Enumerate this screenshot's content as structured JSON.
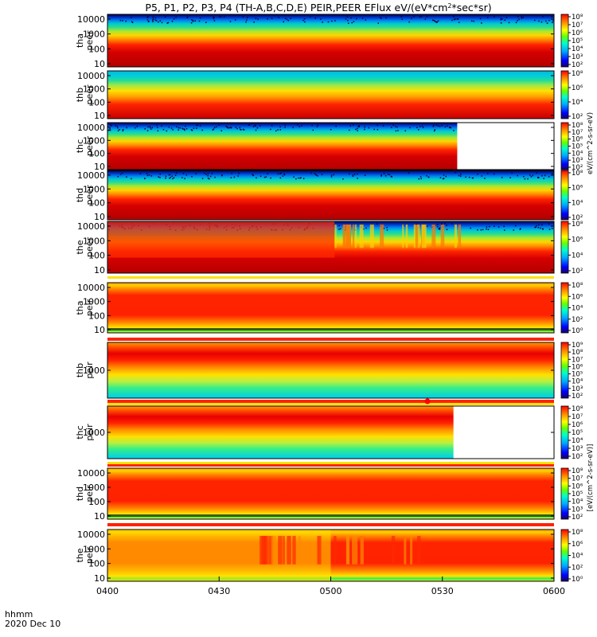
{
  "chart_data": {
    "type": "heatmap",
    "title": "P5, P1, P2, P3, P4 (TH-A,B,C,D,E) PEIR,PEER EFlux eV/(eV*cm",
    "title_sup": "2",
    "title_tail": "*sec*sr)",
    "xaxis": {
      "label_line1": "hhmm",
      "label_line2": "2020 Dec 10",
      "range": [
        "0400",
        "0600"
      ],
      "ticks": [
        "0400",
        "0430",
        "0500",
        "0530",
        "0600"
      ]
    },
    "colorbar_unit_peer": "eV/(cm^2-s-sr-eV)",
    "colorbar_unit_peir": "[eV/(cm^2-s-sr-eV)]",
    "panels": [
      {
        "probe": "tha",
        "species": "peer",
        "ylabel1": "tha",
        "ylabel2": "peer",
        "yscale": "log",
        "yticks": [
          "10",
          "100",
          "1000",
          "10000"
        ],
        "colorbar_ticks": [
          "10²",
          "10³",
          "10⁴",
          "10⁵",
          "10⁶",
          "10⁷",
          "10⁸"
        ],
        "data_end": "0600",
        "pattern": "electron_steady"
      },
      {
        "probe": "thb",
        "species": "peer",
        "ylabel1": "thb",
        "ylabel2": "peer",
        "yscale": "log",
        "yticks": [
          "10",
          "100",
          "1000",
          "10000"
        ],
        "colorbar_ticks": [
          "10²",
          "10⁴",
          "10⁶",
          "10⁸"
        ],
        "data_end": "0600",
        "pattern": "electron_clean"
      },
      {
        "probe": "thc",
        "species": "peer",
        "ylabel1": "thc",
        "ylabel2": "peer",
        "yscale": "log",
        "yticks": [
          "10",
          "100",
          "1000",
          "10000"
        ],
        "colorbar_ticks": [
          "10²",
          "10³",
          "10⁴",
          "10⁵",
          "10⁶",
          "10⁷",
          "10⁸"
        ],
        "data_end": "0534",
        "pattern": "electron_steady"
      },
      {
        "probe": "thd",
        "species": "peer",
        "ylabel1": "thd",
        "ylabel2": "peer",
        "yscale": "log",
        "yticks": [
          "10",
          "100",
          "1000",
          "10000"
        ],
        "colorbar_ticks": [
          "10²",
          "10⁴",
          "10⁶",
          "10⁸"
        ],
        "data_end": "0600",
        "pattern": "electron_steady"
      },
      {
        "probe": "the",
        "species": "peer",
        "ylabel1": "the",
        "ylabel2": "peer",
        "yscale": "log",
        "yticks": [
          "10",
          "100",
          "1000",
          "10000"
        ],
        "colorbar_ticks": [
          "10²",
          "10⁴",
          "10⁶",
          "10⁸"
        ],
        "data_end": "0600",
        "pattern": "electron_disturbed"
      },
      {
        "probe": "tha",
        "species": "peir",
        "ylabel1": "tha",
        "ylabel2": "peir",
        "yscale": "log",
        "yticks": [
          "10",
          "100",
          "1000",
          "10000"
        ],
        "colorbar_ticks": [
          "10⁰",
          "10²",
          "10⁴",
          "10⁶",
          "10⁸"
        ],
        "data_end": "0600",
        "pattern": "ion_full"
      },
      {
        "probe": "thb",
        "species": "peir",
        "ylabel1": "thb",
        "ylabel2": "peir",
        "yscale": "log",
        "yticks": [
          "1000"
        ],
        "colorbar_ticks": [
          "10²",
          "10³",
          "10⁴",
          "10⁵",
          "10⁶",
          "10⁷",
          "10⁸",
          "10⁹"
        ],
        "data_end": "0600",
        "pattern": "ion_narrow"
      },
      {
        "probe": "thc",
        "species": "peir",
        "ylabel1": "thc",
        "ylabel2": "peir",
        "yscale": "log",
        "yticks": [
          "1000"
        ],
        "colorbar_ticks": [
          "10²",
          "10³",
          "10⁴",
          "10⁵",
          "10⁶",
          "10⁷",
          "10⁸"
        ],
        "data_end": "0533",
        "pattern": "ion_narrow"
      },
      {
        "probe": "thd",
        "species": "peir",
        "ylabel1": "thd",
        "ylabel2": "peir",
        "yscale": "log",
        "yticks": [
          "10",
          "100",
          "1000",
          "10000"
        ],
        "colorbar_ticks": [
          "10²",
          "10³",
          "10⁴",
          "10⁵",
          "10⁶",
          "10⁷",
          "10⁸"
        ],
        "data_end": "0600",
        "pattern": "ion_full"
      },
      {
        "probe": "the",
        "species": "peir",
        "ylabel1": "the",
        "ylabel2": "peir",
        "yscale": "log",
        "yticks": [
          "10",
          "100",
          "1000",
          "10000"
        ],
        "colorbar_ticks": [
          "10⁰",
          "10²",
          "10⁴",
          "10⁶",
          "10⁸"
        ],
        "data_end": "0600",
        "pattern": "ion_disturbed"
      }
    ]
  }
}
